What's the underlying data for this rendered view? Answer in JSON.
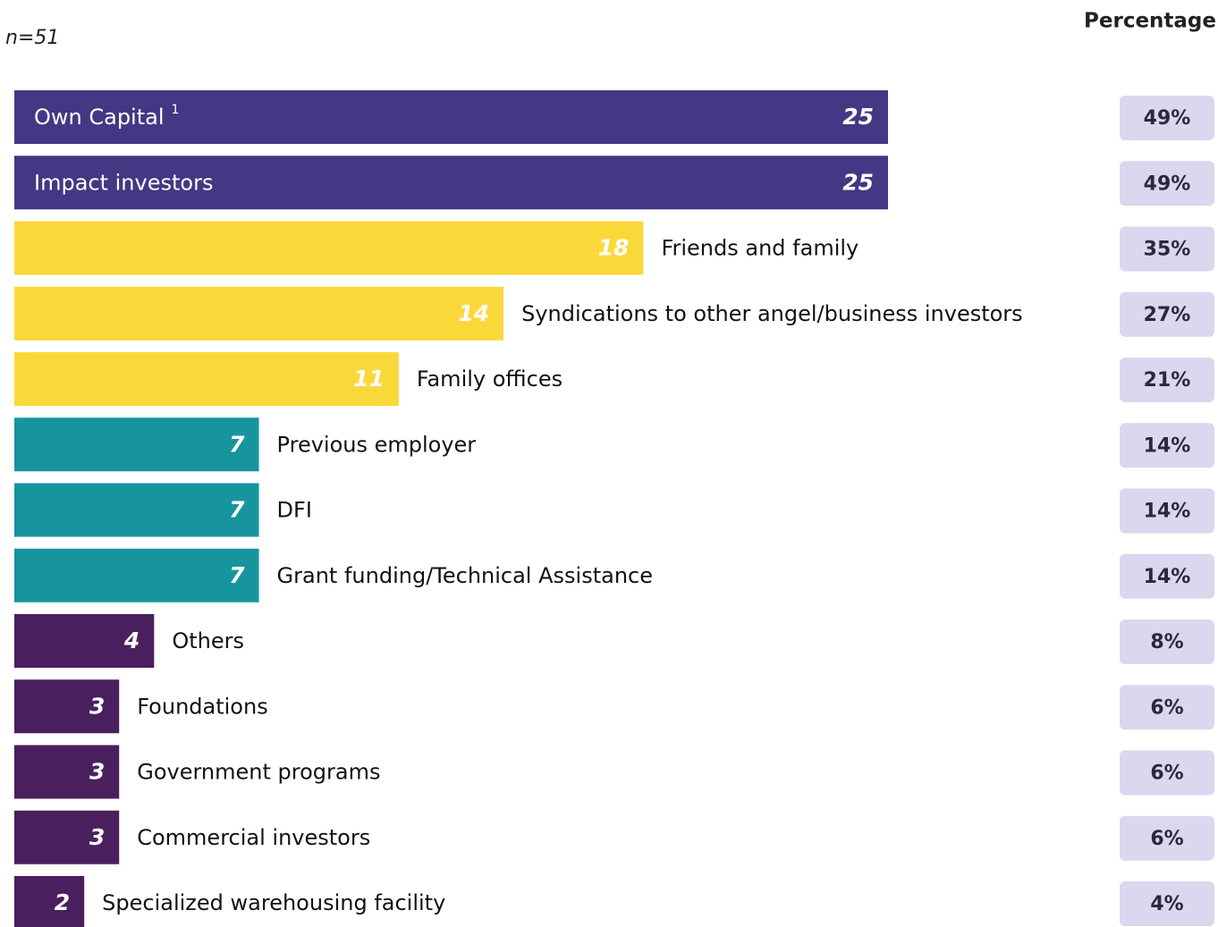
{
  "chart_data": {
    "type": "bar",
    "subtitle": "n=51",
    "column_title": "Percentage",
    "annotation": "1",
    "categories": [
      "Own Capital",
      "Impact investors",
      "Friends and family",
      "Syndications to other angel/business investors",
      "Family offices",
      "Previous employer",
      "DFI",
      "Grant funding/Technical Assistance",
      "Others",
      "Foundations",
      "Government programs",
      "Commercial investors",
      "Specialized warehousing facility"
    ],
    "values": [
      25,
      25,
      18,
      14,
      11,
      7,
      7,
      7,
      4,
      3,
      3,
      3,
      2
    ],
    "colors": [
      "#433883",
      "#433883",
      "#fbd83a",
      "#fbd83a",
      "#fbd83a",
      "#17959f",
      "#17959f",
      "#17959f",
      "#4a1f5e",
      "#4a1f5e",
      "#4a1f5e",
      "#4a1f5e",
      "#4a1f5e"
    ],
    "percentages": [
      "49%",
      "49%",
      "35%",
      "27%",
      "21%",
      "14%",
      "14%",
      "14%",
      "8%",
      "6%",
      "6%",
      "6%",
      "4%"
    ]
  }
}
